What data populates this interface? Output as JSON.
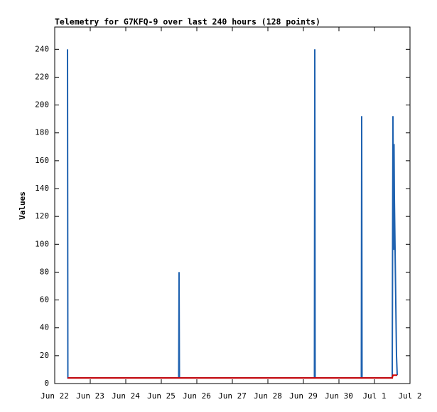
{
  "chart_data": {
    "type": "line",
    "title": "Telemetry for G7KFQ-9 over last 240 hours (128 points)",
    "y_label": "Values",
    "xlim": [
      0,
      10
    ],
    "xticks": [
      {
        "value": 0,
        "label": "Jun 22"
      },
      {
        "value": 1,
        "label": "Jun 23"
      },
      {
        "value": 2,
        "label": "Jun 24"
      },
      {
        "value": 3,
        "label": "Jun 25"
      },
      {
        "value": 4,
        "label": "Jun 26"
      },
      {
        "value": 5,
        "label": "Jun 27"
      },
      {
        "value": 6,
        "label": "Jun 28"
      },
      {
        "value": 7,
        "label": "Jun 29"
      },
      {
        "value": 8,
        "label": "Jun 30"
      },
      {
        "value": 9,
        "label": "Jul 1"
      },
      {
        "value": 10,
        "label": "Jul 2"
      }
    ],
    "ylim": [
      0,
      256
    ],
    "yticks": [
      0,
      20,
      40,
      60,
      80,
      100,
      120,
      140,
      160,
      180,
      200,
      220,
      240
    ],
    "series": [
      {
        "color": "#1f62b0",
        "x": [
          0.36,
          0.37,
          3.49,
          3.5,
          3.51,
          7.31,
          7.32,
          7.33,
          8.63,
          8.64,
          8.65,
          9.5,
          9.52,
          9.54,
          9.55,
          9.56,
          9.58,
          9.6,
          9.62,
          9.64
        ],
        "values": [
          240,
          4,
          4,
          80,
          4,
          4,
          240,
          4,
          4,
          192,
          4,
          4,
          192,
          96,
          172,
          134,
          96,
          58,
          20,
          6
        ]
      },
      {
        "color": "#d00000",
        "x": [
          0.36,
          9.5,
          9.52,
          9.64
        ],
        "values": [
          4,
          4,
          6,
          6
        ]
      }
    ]
  }
}
